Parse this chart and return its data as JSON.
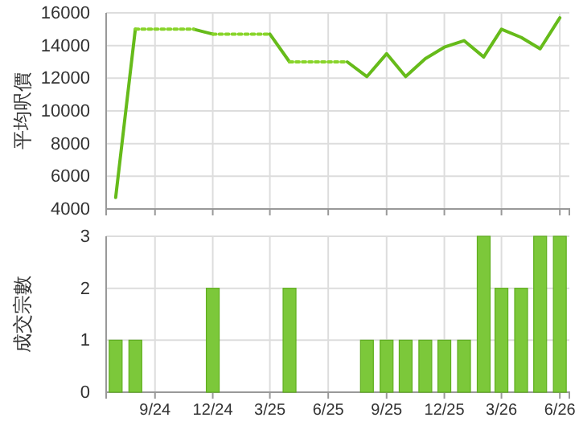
{
  "chart_data": [
    {
      "type": "line",
      "ylabel": "平均呎價",
      "x": [
        "2024-07",
        "2024-08",
        "2024-09",
        "2024-10",
        "2024-11",
        "2024-12",
        "2025-01",
        "2025-02",
        "2025-03",
        "2025-04",
        "2025-05",
        "2025-06",
        "2025-07",
        "2025-08",
        "2025-09",
        "2025-10",
        "2025-11",
        "2025-12",
        "2026-01",
        "2026-02",
        "2026-03",
        "2026-04",
        "2026-05",
        "2026-06"
      ],
      "series": [
        {
          "color": "#66bb1a",
          "line_style": "solid",
          "values": [
            4700,
            15000,
            null,
            null,
            15000,
            14700,
            null,
            null,
            14700,
            13000,
            null,
            null,
            13000,
            12100,
            13500,
            12100,
            13200,
            13900,
            14300,
            13300,
            15000,
            14500,
            13800,
            15700
          ]
        },
        {
          "color": "#88d42a",
          "line_style": "dotted",
          "values": [
            null,
            15000,
            15000,
            15000,
            15000,
            null,
            null,
            null,
            null,
            null,
            null,
            null,
            null,
            null,
            null,
            null,
            null,
            null,
            null,
            null,
            null,
            null,
            null,
            null
          ]
        },
        {
          "color": "#88d42a",
          "line_style": "dotted",
          "values": [
            null,
            null,
            null,
            null,
            null,
            14700,
            14700,
            14700,
            14700,
            null,
            null,
            null,
            null,
            null,
            null,
            null,
            null,
            null,
            null,
            null,
            null,
            null,
            null,
            null
          ]
        },
        {
          "color": "#88d42a",
          "line_style": "dotted",
          "values": [
            null,
            null,
            null,
            null,
            null,
            null,
            null,
            null,
            null,
            13000,
            13000,
            13000,
            13000,
            null,
            null,
            null,
            null,
            null,
            null,
            null,
            null,
            null,
            null,
            null
          ]
        }
      ],
      "xlim": [
        "2024-06-16",
        "2026-06-16"
      ],
      "xticks": [
        {
          "value": "2024-09",
          "label": null
        },
        {
          "value": "2024-12",
          "label": null
        },
        {
          "value": "2025-03",
          "label": null
        },
        {
          "value": "2025-06",
          "label": null
        },
        {
          "value": "2025-09",
          "label": null
        },
        {
          "value": "2025-12",
          "label": null
        },
        {
          "value": "2026-03",
          "label": null
        },
        {
          "value": "2026-06",
          "label": null
        }
      ],
      "ylim": [
        4000,
        16000
      ],
      "yticks": [
        4000,
        6000,
        8000,
        10000,
        12000,
        14000,
        16000
      ],
      "grid": true,
      "tick_labels": "y"
    },
    {
      "type": "bar",
      "ylabel": "成交宗數",
      "x": [
        "2024-07",
        "2024-08",
        "2024-12",
        "2025-04",
        "2025-08",
        "2025-09",
        "2025-10",
        "2025-11",
        "2025-12",
        "2026-01",
        "2026-02",
        "2026-03",
        "2026-04",
        "2026-05",
        "2026-06"
      ],
      "values": [
        1,
        1,
        2,
        2,
        1,
        1,
        1,
        1,
        1,
        1,
        3,
        2,
        2,
        3,
        3
      ],
      "color": "#7cc83a",
      "xlim": [
        "2024-06-16",
        "2026-06-16"
      ],
      "xticks": [
        {
          "value": "2024-09",
          "label": "9/24"
        },
        {
          "value": "2024-12",
          "label": "12/24"
        },
        {
          "value": "2025-03",
          "label": "3/25"
        },
        {
          "value": "2025-06",
          "label": "6/25"
        },
        {
          "value": "2025-09",
          "label": "9/25"
        },
        {
          "value": "2025-12",
          "label": "12/25"
        },
        {
          "value": "2026-03",
          "label": "3/26"
        },
        {
          "value": "2026-06",
          "label": "6/26"
        }
      ],
      "ylim": [
        0,
        3
      ],
      "yticks": [
        0,
        1,
        2,
        3
      ],
      "grid": true
    }
  ]
}
